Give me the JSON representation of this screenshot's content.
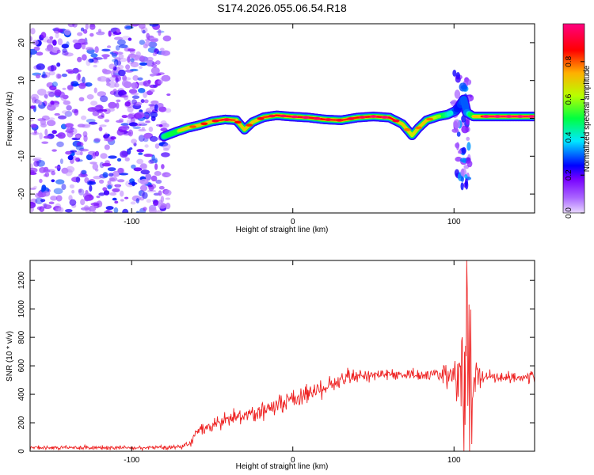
{
  "title": "S174.2026.055.06.54.R18",
  "chart_data": [
    {
      "id": "spectrogram",
      "type": "heatmap",
      "xlabel": "Height of straight line (km)",
      "ylabel": "Frequency (Hz)",
      "xlim": [
        -163,
        150
      ],
      "ylim": [
        -25,
        25
      ],
      "x_ticks": [
        -100,
        0,
        100
      ],
      "y_ticks": [
        -20,
        -10,
        0,
        10,
        20
      ],
      "colorbar": {
        "label": "Normalized spectral amplitude",
        "range": [
          0,
          1
        ],
        "ticks": [
          0.0,
          0.2,
          0.4,
          0.6,
          0.8
        ],
        "colors": [
          "#e8d8ff",
          "#8800ff",
          "#0000ff",
          "#00e8ff",
          "#00ff40",
          "#b8ff00",
          "#ffb000",
          "#ff0000",
          "#ff0080"
        ]
      },
      "noise_region": {
        "x_range": [
          -163,
          -77
        ],
        "max_amplitude": 0.25
      },
      "ridge": {
        "x": [
          -80,
          -72,
          -65,
          -58,
          -50,
          -42,
          -35,
          -30,
          -25,
          -18,
          -10,
          -2,
          10,
          20,
          30,
          40,
          50,
          60,
          68,
          74,
          78,
          83,
          90,
          96,
          101,
          103,
          106,
          108,
          112,
          120,
          130,
          140,
          150
        ],
        "frequency": [
          -4.8,
          -3.5,
          -2.5,
          -1.8,
          -0.8,
          -0.3,
          -0.5,
          -3.0,
          -1.0,
          0.3,
          0.8,
          0.5,
          0.2,
          -0.3,
          -0.5,
          0.2,
          0.5,
          0.2,
          -1.5,
          -4.5,
          -2.5,
          -0.5,
          0.5,
          1.0,
          2.0,
          3.0,
          5.0,
          1.5,
          0.5,
          0.5,
          0.5,
          0.5,
          0.5
        ],
        "amplitude": [
          0.45,
          0.55,
          0.7,
          0.75,
          0.8,
          0.85,
          0.8,
          0.7,
          0.78,
          0.82,
          0.85,
          0.9,
          0.9,
          0.85,
          0.82,
          0.85,
          0.9,
          0.9,
          0.75,
          0.65,
          0.7,
          0.75,
          0.6,
          0.45,
          0.3,
          0.25,
          0.3,
          0.3,
          0.6,
          0.95,
          0.95,
          0.95,
          0.95
        ]
      },
      "burst": {
        "x_range": [
          100,
          110
        ],
        "frequency_range": [
          -18,
          12
        ],
        "max_amplitude": 0.3
      }
    },
    {
      "id": "snr",
      "type": "line",
      "xlabel": "Height of straight line (km)",
      "ylabel": "SNR (10 * v/v)",
      "xlim": [
        -163,
        150
      ],
      "ylim": [
        0,
        1340
      ],
      "x_ticks": [
        -100,
        0,
        100
      ],
      "y_ticks": [
        0,
        200,
        400,
        600,
        800,
        1000,
        1200
      ],
      "color": "#ee2222",
      "series": {
        "name": "SNR",
        "x": [
          -163,
          -120,
          -90,
          -70,
          -63,
          -60,
          -50,
          -40,
          -25,
          -10,
          0,
          10,
          20,
          30,
          40,
          50,
          60,
          70,
          80,
          90,
          100,
          105,
          108,
          110,
          113,
          120,
          130,
          140,
          150
        ],
        "mean": [
          25,
          25,
          25,
          30,
          60,
          140,
          170,
          220,
          260,
          330,
          370,
          400,
          450,
          500,
          530,
          540,
          540,
          540,
          540,
          540,
          520,
          480,
          520,
          550,
          540,
          530,
          520,
          520,
          520
        ],
        "noise": [
          12,
          12,
          12,
          15,
          25,
          30,
          40,
          50,
          60,
          60,
          60,
          60,
          60,
          55,
          50,
          40,
          35,
          35,
          35,
          35,
          120,
          380,
          600,
          420,
          120,
          40,
          35,
          35,
          35
        ]
      },
      "peak": {
        "x": 108,
        "y": 1340
      },
      "trough": {
        "x": 111,
        "y": 50
      }
    }
  ]
}
